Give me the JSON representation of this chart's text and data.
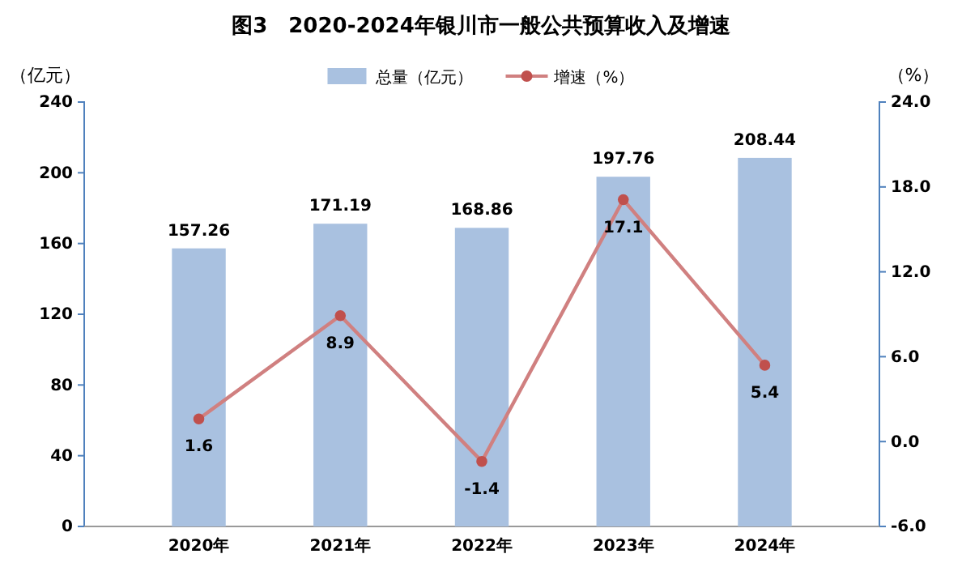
{
  "chart_data": {
    "type": "bar",
    "title": "图3　2020-2024年银川市一般公共预算收入及增速",
    "ylabel": "（亿元）",
    "y2label": "（%）",
    "categories": [
      "2020年",
      "2021年",
      "2022年",
      "2023年",
      "2024年"
    ],
    "series": [
      {
        "name": "总量（亿元）",
        "color": "#a9c1e0",
        "values": [
          157.26,
          171.19,
          168.86,
          197.76,
          208.44
        ]
      },
      {
        "name": "增速（%）",
        "type": "line",
        "axis": "y2",
        "color": "#d08080",
        "marker": "circle",
        "values": [
          1.6,
          8.9,
          -1.4,
          17.1,
          5.4
        ]
      }
    ],
    "ylim": [
      0,
      240
    ],
    "yticks": [
      0,
      40,
      80,
      120,
      160,
      200,
      240
    ],
    "y2lim": [
      -6,
      24
    ],
    "y2ticks": [
      {
        "value": -6,
        "label": "-6.0"
      },
      {
        "value": 0,
        "label": "0.0"
      },
      {
        "value": 6,
        "label": "6.0"
      },
      {
        "value": 12,
        "label": "12.0"
      },
      {
        "value": 18,
        "label": "18.0"
      },
      {
        "value": 24,
        "label": "24.0"
      }
    ],
    "data_labels": true,
    "legend": "top",
    "grid": false
  }
}
